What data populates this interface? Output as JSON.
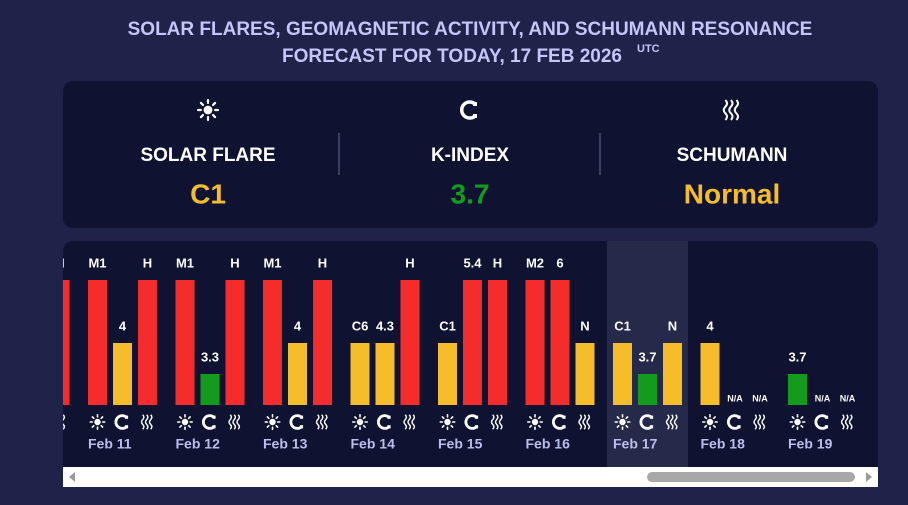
{
  "header": {
    "title_line1": "SOLAR FLARES, GEOMAGNETIC ACTIVITY, AND SCHUMANN RESONANCE",
    "title_line2": "FORECAST FOR TODAY, 17 FEB 2026",
    "title_sup": "UTC"
  },
  "summary": [
    {
      "label": "SOLAR FLARE",
      "value": "C1",
      "color": "#f6bd2a"
    },
    {
      "label": "K-INDEX",
      "value": "3.7",
      "color": "#139b1d"
    },
    {
      "label": "SCHUMANN",
      "value": "Normal",
      "color": "#f6bd2a"
    }
  ],
  "days": [
    {
      "date": null,
      "bars": [
        null,
        null,
        {
          "label": "H",
          "color": "#f52c2c"
        }
      ]
    },
    {
      "date": "Feb 11",
      "bars": [
        {
          "label": "M1",
          "color": "#f52c2c"
        },
        {
          "label": "4",
          "color": "#f6bd2a"
        },
        {
          "label": "H",
          "color": "#f52c2c"
        }
      ]
    },
    {
      "date": "Feb 12",
      "bars": [
        {
          "label": "M1",
          "color": "#f52c2c"
        },
        {
          "label": "3.3",
          "color": "#139b1d"
        },
        {
          "label": "H",
          "color": "#f52c2c"
        }
      ]
    },
    {
      "date": "Feb 13",
      "bars": [
        {
          "label": "M1",
          "color": "#f52c2c"
        },
        {
          "label": "4",
          "color": "#f6bd2a"
        },
        {
          "label": "H",
          "color": "#f52c2c"
        }
      ]
    },
    {
      "date": "Feb 14",
      "bars": [
        {
          "label": "C6",
          "color": "#f6bd2a"
        },
        {
          "label": "4.3",
          "color": "#f6bd2a"
        },
        {
          "label": "H",
          "color": "#f52c2c"
        }
      ]
    },
    {
      "date": "Feb 15",
      "bars": [
        {
          "label": "C1",
          "color": "#f6bd2a"
        },
        {
          "label": "5.4",
          "color": "#f52c2c"
        },
        {
          "label": "H",
          "color": "#f52c2c"
        }
      ]
    },
    {
      "date": "Feb 16",
      "bars": [
        {
          "label": "M2",
          "color": "#f52c2c"
        },
        {
          "label": "6",
          "color": "#f52c2c"
        },
        {
          "label": "N",
          "color": "#f6bd2a"
        }
      ]
    },
    {
      "date": "Feb 17",
      "highlighted": true,
      "bars": [
        {
          "label": "C1",
          "color": "#f6bd2a"
        },
        {
          "label": "3.7",
          "color": "#139b1d"
        },
        {
          "label": "N",
          "color": "#f6bd2a"
        }
      ]
    },
    {
      "date": "Feb 18",
      "bars": [
        {
          "label": "4",
          "color": "#f6bd2a"
        },
        {
          "label": "N/A"
        },
        {
          "label": "N/A"
        }
      ]
    },
    {
      "date": "Feb 19",
      "bars": [
        {
          "label": "3.7",
          "color": "#139b1d"
        },
        {
          "label": "N/A"
        },
        {
          "label": "N/A"
        }
      ]
    }
  ]
}
